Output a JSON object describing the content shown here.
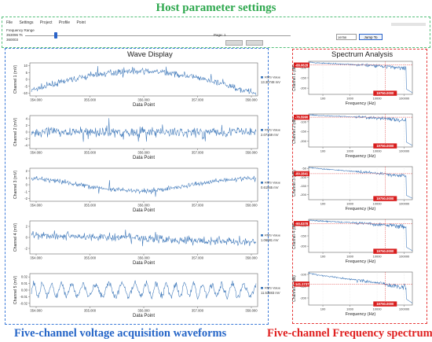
{
  "captions": {
    "host": "Host parameter settings",
    "wave": "Five-channel voltage acquisition waveforms",
    "spectrum": "Five-channel Frequency spectrum"
  },
  "host": {
    "menu": [
      "File",
      "Settings",
      "Project",
      "Profile",
      "Point"
    ],
    "field_label": "Frequency Range",
    "value_top": "353096",
    "value_top_unit": "Ts",
    "value_bottom": "360003",
    "slider_label": "Page: 1",
    "select_value": "19750",
    "button_label": "Jump To"
  },
  "wave": {
    "title": "Wave Display",
    "xlabel": "Data Point",
    "x_ticks": [
      "354.000",
      "355.000",
      "356.000",
      "357.000",
      "358.000"
    ],
    "value_label": "RMS Value",
    "channels": [
      {
        "ylabel": "Channel 1 (mV)",
        "y_ticks": [
          "10",
          "5",
          "0",
          "-5",
          "-10"
        ],
        "ylim": [
          -12,
          12
        ],
        "rms": "13.30748 mV",
        "color": "#3a75b8"
      },
      {
        "ylabel": "Channel 2 (mV)",
        "y_ticks": [
          "4",
          "2",
          "0",
          "-2",
          "-4"
        ],
        "ylim": [
          -5,
          5
        ],
        "rms": "2.07159 mV",
        "color": "#3a75b8"
      },
      {
        "ylabel": "Channel 3 (mV)",
        "y_ticks": [
          "2",
          "1",
          "0",
          "-1",
          "-2"
        ],
        "ylim": [
          -2.4,
          2.4
        ],
        "rms": "0.61565 mV",
        "color": "#3a75b8"
      },
      {
        "ylabel": "Channel 4 (mV)",
        "y_ticks": [
          "2",
          "0",
          "-2"
        ],
        "ylim": [
          -3,
          3
        ],
        "rms": "1.06081 mV",
        "color": "#3a75b8"
      },
      {
        "ylabel": "Channel 5 (mV)",
        "y_ticks": [
          "0.02",
          "0.01",
          "0.00",
          "-0.01",
          "-0.02"
        ],
        "ylim": [
          -0.025,
          0.025
        ],
        "rms": "11.53883 mV",
        "color": "#3a75b8"
      }
    ]
  },
  "spectrum": {
    "title": "Spectrum Analysis",
    "xlabel": "Frequency (Hz)",
    "x_ticks": [
      "100",
      "1000",
      "10000",
      "100000"
    ],
    "marker_freq": "19750.0000",
    "channels": [
      {
        "ylabel": "Channel 1 (dB)",
        "y_ticks": [
          "-100",
          "-150",
          "-200"
        ],
        "marker_db": "-88.0628",
        "ylim": [
          -230,
          -70
        ],
        "marker_value": -88.0628
      },
      {
        "ylabel": "Channel 2 (dB)",
        "y_ticks": [
          "-100",
          "-150",
          "-200"
        ],
        "marker_db": "-76.5990",
        "ylim": [
          -230,
          -60
        ],
        "marker_value": -76.599
      },
      {
        "ylabel": "Channel 3 (dB)",
        "y_ticks": [
          "-50",
          "-100",
          "-150",
          "-200"
        ],
        "marker_db": "-80.2841",
        "ylim": [
          -230,
          -40
        ],
        "marker_value": -80.2841
      },
      {
        "ylabel": "Channel 4 (dB)",
        "y_ticks": [
          "-100",
          "-150",
          "-200"
        ],
        "marker_db": "-90.0378",
        "ylim": [
          -230,
          -70
        ],
        "marker_value": -90.0378
      },
      {
        "ylabel": "Channel 5 (dB)",
        "y_ticks": [
          "-100",
          "-150",
          "-200"
        ],
        "marker_db": "-141.1737",
        "ylim": [
          -230,
          -90
        ],
        "marker_value": -141.1737
      }
    ]
  }
}
